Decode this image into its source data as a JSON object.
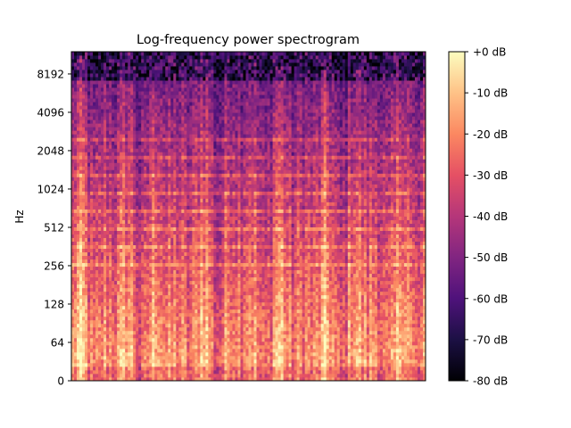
{
  "chart_data": {
    "type": "heatmap",
    "title": "Log-frequency power spectrogram",
    "xlabel": "",
    "ylabel": "Hz",
    "y_scale": "log",
    "x_ticks": [],
    "y_ticks": [
      {
        "value": 0,
        "label": "0"
      },
      {
        "value": 64,
        "label": "64"
      },
      {
        "value": 128,
        "label": "128"
      },
      {
        "value": 256,
        "label": "256"
      },
      {
        "value": 512,
        "label": "512"
      },
      {
        "value": 1024,
        "label": "1024"
      },
      {
        "value": 2048,
        "label": "2048"
      },
      {
        "value": 4096,
        "label": "4096"
      },
      {
        "value": 8192,
        "label": "8192"
      }
    ],
    "colorbar": {
      "colormap": "magma",
      "range": [
        -80,
        0
      ],
      "unit": "dB",
      "ticks": [
        {
          "value": 0,
          "label": "+0 dB"
        },
        {
          "value": -10,
          "label": "-10 dB"
        },
        {
          "value": -20,
          "label": "-20 dB"
        },
        {
          "value": -30,
          "label": "-30 dB"
        },
        {
          "value": -40,
          "label": "-40 dB"
        },
        {
          "value": -50,
          "label": "-50 dB"
        },
        {
          "value": -60,
          "label": "-60 dB"
        },
        {
          "value": -70,
          "label": "-70 dB"
        },
        {
          "value": -80,
          "label": "-80 dB"
        }
      ]
    },
    "magma_stops": [
      "#000004",
      "#1c1044",
      "#4f127b",
      "#812581",
      "#b5367a",
      "#e55064",
      "#fb8861",
      "#fec287",
      "#fcfdbf"
    ]
  }
}
